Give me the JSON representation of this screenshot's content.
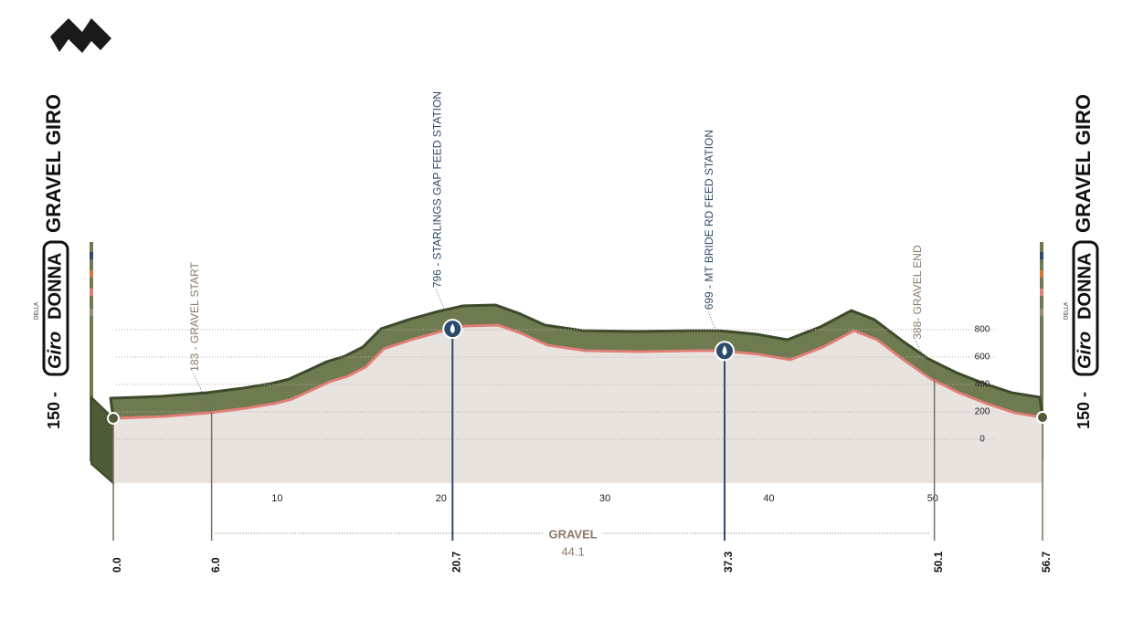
{
  "brand": {
    "della": "DELLA",
    "giro": "Giro",
    "donna": "DONNA"
  },
  "side_title": "GRAVEL GIRO",
  "start_elevation_label": "150 -",
  "chart_data": {
    "type": "area",
    "x": [
      0,
      3.1,
      5.9,
      8.1,
      9.8,
      10.9,
      12.0,
      13.2,
      14.3,
      15.4,
      16.5,
      18.2,
      20.0,
      21.5,
      23.5,
      24.9,
      26.5,
      28.8,
      32.1,
      35.5,
      37.1,
      39.4,
      41.3,
      43.3,
      45.2,
      46.6,
      48.3,
      49.9,
      51.6,
      53.3,
      55.0,
      56.7
    ],
    "values": [
      153,
      167,
      193,
      227,
      260,
      293,
      353,
      420,
      460,
      527,
      660,
      727,
      787,
      827,
      833,
      773,
      687,
      647,
      640,
      647,
      647,
      620,
      580,
      673,
      793,
      727,
      573,
      440,
      340,
      260,
      193,
      160
    ],
    "line_color": "#e07f78",
    "fill_color": "#e9e3e0",
    "band_color": "#6e7b51",
    "xlim": [
      0,
      56.7
    ],
    "xticks": [
      10,
      20,
      30,
      40,
      50
    ],
    "ylim": [
      -300,
      900
    ],
    "yticks": [
      0,
      200,
      400,
      600,
      800
    ],
    "grid": true,
    "waypoints": [
      {
        "km": {
          "value": 0,
          "label": "0.0"
        },
        "marker": "dot"
      },
      {
        "km": {
          "value": 6.0,
          "label": "6.0"
        },
        "annotation": "183 - GRAVEL START"
      },
      {
        "km": {
          "value": 20.7,
          "label": "20.7"
        },
        "annotation": "796 - STARLINGS GAP FEED STATION",
        "marker": "water"
      },
      {
        "km": {
          "value": 37.3,
          "label": "37.3"
        },
        "annotation": "699 - MT BRIDE RD FEED STATION",
        "marker": "water"
      },
      {
        "km": {
          "value": 50.1,
          "label": "50.1"
        },
        "annotation": "388- GRAVEL END"
      },
      {
        "km": {
          "value": 56.7,
          "label": "56.7"
        },
        "marker": "dot"
      }
    ],
    "gravel": {
      "label": "GRAVEL",
      "length": 44.1
    }
  }
}
